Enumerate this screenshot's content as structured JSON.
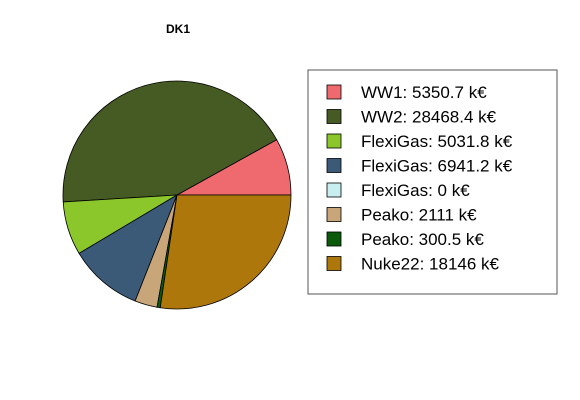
{
  "chart_data": {
    "type": "pie",
    "title": "DK1",
    "legend_position": "right",
    "slices": [
      {
        "label": "WW1: 5350.7 k€",
        "value": 5350.7,
        "color": "#EE6A6E"
      },
      {
        "label": "WW2: 28468.4 k€",
        "value": 28468.4,
        "color": "#465A24"
      },
      {
        "label": "FlexiGas: 5031.8 k€",
        "value": 5031.8,
        "color": "#8BC72A"
      },
      {
        "label": "FlexiGas: 6941.2 k€",
        "value": 6941.2,
        "color": "#3A5A78"
      },
      {
        "label": "FlexiGas: 0 k€",
        "value": 0,
        "color": "#C8EEF0"
      },
      {
        "label": "Peako: 2111 k€",
        "value": 2111,
        "color": "#C9A57A"
      },
      {
        "label": "Peako: 300.5 k€",
        "value": 300.5,
        "color": "#0B5A0B"
      },
      {
        "label": "Nuke22: 18146 k€",
        "value": 18146,
        "color": "#AD770C"
      }
    ]
  }
}
